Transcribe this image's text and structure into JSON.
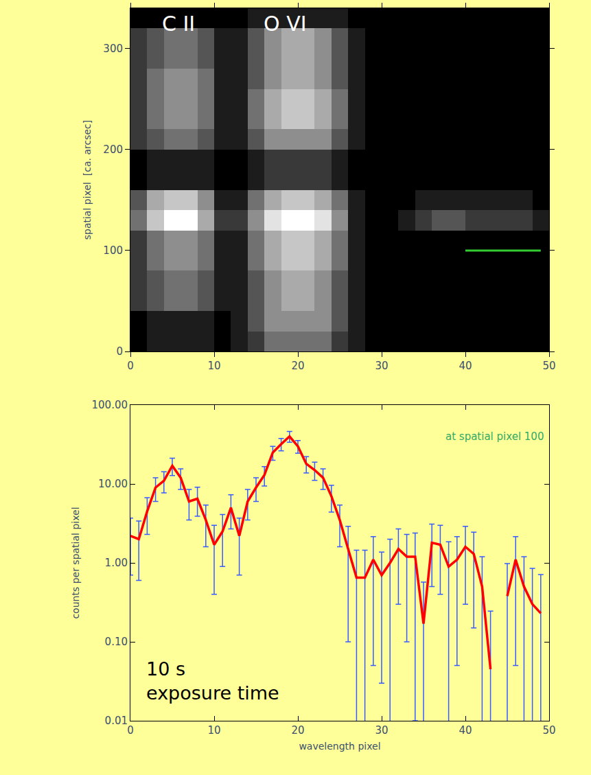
{
  "chart_data": [
    {
      "type": "heatmap",
      "ylabel": "spatial pixel  [ca. arcsec]",
      "x": [
        1,
        3,
        5,
        7,
        9,
        11,
        13,
        15,
        17,
        19,
        21,
        23,
        25,
        27,
        29,
        31,
        33,
        35,
        37,
        39,
        41,
        43,
        45,
        47,
        49
      ],
      "y": [
        10,
        30,
        50,
        70,
        90,
        110,
        130,
        150,
        170,
        190,
        210,
        230,
        250,
        270,
        290,
        310,
        330
      ],
      "cells": [
        [
          0,
          1,
          1,
          1,
          1,
          0,
          1,
          2,
          4,
          4,
          4,
          4,
          2,
          1,
          0,
          0,
          0,
          0,
          0,
          0,
          0,
          0,
          0,
          0,
          0
        ],
        [
          0,
          1,
          1,
          1,
          1,
          0,
          1,
          3,
          5,
          5,
          5,
          5,
          3,
          1,
          0,
          0,
          0,
          0,
          0,
          0,
          0,
          0,
          0,
          0,
          0
        ],
        [
          2,
          3,
          4,
          4,
          3,
          1,
          1,
          3,
          5,
          6,
          6,
          5,
          3,
          1,
          0,
          0,
          0,
          0,
          0,
          0,
          0,
          0,
          0,
          0,
          0
        ],
        [
          2,
          3,
          4,
          4,
          3,
          1,
          1,
          3,
          5,
          6,
          6,
          5,
          3,
          1,
          0,
          0,
          0,
          0,
          0,
          0,
          0,
          0,
          0,
          0,
          0
        ],
        [
          2,
          4,
          5,
          5,
          4,
          1,
          1,
          4,
          6,
          7,
          7,
          6,
          4,
          1,
          0,
          0,
          0,
          0,
          0,
          0,
          0,
          0,
          0,
          0,
          0
        ],
        [
          2,
          4,
          5,
          5,
          4,
          1,
          1,
          4,
          6,
          7,
          7,
          6,
          4,
          1,
          0,
          0,
          0,
          0,
          0,
          0,
          0,
          0,
          0,
          0,
          0
        ],
        [
          4,
          7,
          9,
          9,
          6,
          2,
          2,
          5,
          8,
          9,
          9,
          8,
          5,
          1,
          0,
          0,
          1,
          2,
          3,
          3,
          2,
          2,
          2,
          2,
          1
        ],
        [
          3,
          6,
          7,
          7,
          5,
          1,
          1,
          4,
          6,
          7,
          7,
          6,
          4,
          1,
          0,
          0,
          0,
          1,
          1,
          1,
          1,
          1,
          1,
          1,
          0
        ],
        [
          0,
          1,
          1,
          1,
          1,
          0,
          0,
          1,
          2,
          2,
          2,
          2,
          1,
          0,
          0,
          0,
          0,
          0,
          0,
          0,
          0,
          0,
          0,
          0,
          0
        ],
        [
          0,
          1,
          1,
          1,
          1,
          0,
          0,
          1,
          2,
          2,
          2,
          2,
          1,
          0,
          0,
          0,
          0,
          0,
          0,
          0,
          0,
          0,
          0,
          0,
          0
        ],
        [
          2,
          3,
          4,
          4,
          3,
          1,
          1,
          3,
          5,
          5,
          5,
          5,
          3,
          1,
          0,
          0,
          0,
          0,
          0,
          0,
          0,
          0,
          0,
          0,
          0
        ],
        [
          2,
          4,
          5,
          5,
          4,
          1,
          1,
          4,
          6,
          7,
          7,
          6,
          4,
          1,
          0,
          0,
          0,
          0,
          0,
          0,
          0,
          0,
          0,
          0,
          0
        ],
        [
          2,
          4,
          5,
          5,
          4,
          1,
          1,
          4,
          6,
          7,
          7,
          6,
          4,
          1,
          0,
          0,
          0,
          0,
          0,
          0,
          0,
          0,
          0,
          0,
          0
        ],
        [
          2,
          4,
          5,
          5,
          4,
          1,
          1,
          3,
          5,
          6,
          6,
          5,
          3,
          1,
          0,
          0,
          0,
          0,
          0,
          0,
          0,
          0,
          0,
          0,
          0
        ],
        [
          2,
          3,
          4,
          4,
          3,
          1,
          1,
          3,
          5,
          6,
          6,
          5,
          3,
          1,
          0,
          0,
          0,
          0,
          0,
          0,
          0,
          0,
          0,
          0,
          0
        ],
        [
          2,
          3,
          4,
          4,
          3,
          1,
          1,
          3,
          5,
          6,
          6,
          5,
          3,
          1,
          0,
          0,
          0,
          0,
          0,
          0,
          0,
          0,
          0,
          0,
          0
        ],
        [
          0,
          0,
          0,
          0,
          0,
          0,
          0,
          1,
          1,
          1,
          1,
          1,
          1,
          0,
          0,
          0,
          0,
          0,
          0,
          0,
          0,
          0,
          0,
          0,
          0
        ]
      ],
      "color_range": [
        0,
        9
      ],
      "xlim": [
        0,
        50
      ],
      "xticks": [
        0,
        10,
        20,
        30,
        40,
        50
      ],
      "ylim": [
        0,
        340
      ],
      "yticks": [
        0,
        100,
        200,
        300
      ],
      "annotations": [
        "C II",
        "O VI"
      ],
      "lines": [
        {
          "x": [
            40,
            49
          ],
          "y": 100,
          "color": "#33cc33"
        }
      ]
    },
    {
      "type": "line",
      "xlabel": "wavelength pixel",
      "ylabel": "counts per spatial pixel",
      "log": "y",
      "color": "#ff0000",
      "x": [
        0,
        1,
        2,
        3,
        4,
        5,
        6,
        7,
        8,
        9,
        10,
        11,
        12,
        13,
        14,
        15,
        16,
        17,
        18,
        19,
        20,
        21,
        22,
        23,
        24,
        25,
        26,
        27,
        28,
        29,
        30,
        31,
        32,
        33,
        34,
        35,
        36,
        37,
        38,
        39,
        40,
        41,
        42,
        43,
        44,
        45,
        46,
        47,
        48,
        49
      ],
      "values": [
        2.2,
        2.0,
        4.5,
        9,
        11,
        17,
        12,
        6,
        6.5,
        3.5,
        1.7,
        2.5,
        5,
        2.2,
        6,
        9,
        13,
        25,
        32,
        40,
        30,
        18,
        15,
        12,
        7,
        3.5,
        1.5,
        0.65,
        0.65,
        1.1,
        0.7,
        1.0,
        1.5,
        1.2,
        1.2,
        0.17,
        1.8,
        1.7,
        0.9,
        1.1,
        1.6,
        1.3,
        0.5,
        0.045,
        null,
        0.38,
        1.1,
        0.5,
        0.3,
        0.23
      ],
      "errors": [
        1.5,
        1.4,
        2.2,
        3.0,
        3.3,
        4.2,
        3.5,
        2.5,
        2.6,
        1.9,
        1.3,
        1.6,
        2.3,
        1.5,
        2.5,
        3,
        3.6,
        5,
        5.7,
        6.3,
        5.5,
        4.2,
        3.9,
        3.5,
        2.6,
        1.9,
        1.4,
        0.8,
        0.8,
        1.05,
        0.67,
        1.0,
        1.2,
        1.1,
        1.19,
        0.4,
        1.3,
        1.3,
        0.95,
        1.05,
        1.3,
        1.15,
        0.7,
        0.2,
        null,
        0.6,
        1.05,
        0.7,
        0.55,
        0.48
      ],
      "xlim": [
        0,
        50
      ],
      "xticks": [
        0,
        10,
        20,
        30,
        40,
        50
      ],
      "ylim": [
        0.01,
        100
      ],
      "yticks": [
        0.01,
        {
          "value": 0.1,
          "label": "0.10"
        },
        {
          "value": 1,
          "label": "1.00"
        },
        {
          "value": 10,
          "label": "10.00"
        },
        {
          "value": 100,
          "label": "100.00"
        }
      ],
      "annotations": [
        {
          "text": "at spatial pixel 100",
          "color": "#33aa66"
        },
        {
          "lines": [
            "10 s",
            "exposure time"
          ],
          "color": "#000000"
        }
      ]
    }
  ]
}
